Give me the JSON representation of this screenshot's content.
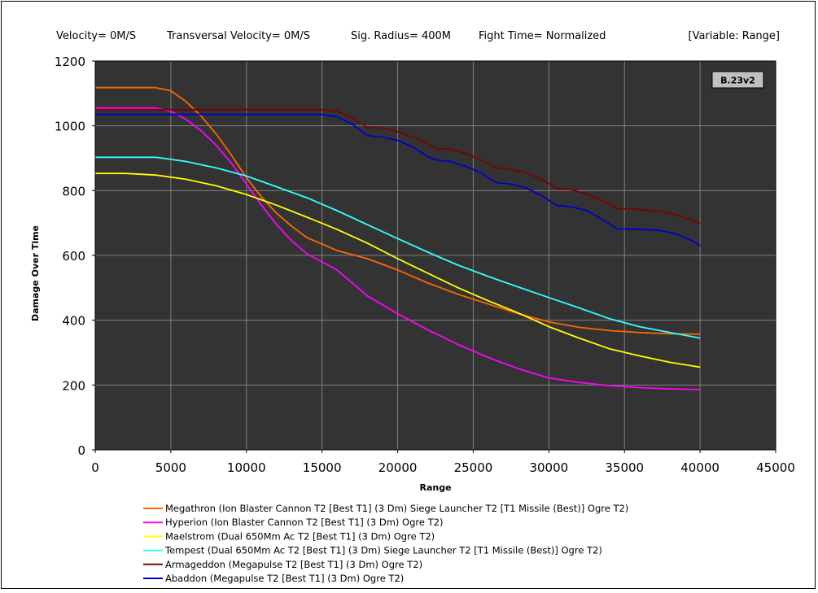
{
  "header": {
    "velocity": "Velocity= 0M/S",
    "transversal": "Transversal Velocity= 0M/S",
    "sig_radius": "Sig. Radius= 400M",
    "fight_time": "Fight Time= Normalized",
    "variable": "[Variable: Range]"
  },
  "badge": "B.23v2",
  "colors": {
    "plot_bg": "#333333",
    "grid": "#808080"
  },
  "chart_data": {
    "type": "line",
    "title": "",
    "xlabel": "Range",
    "ylabel": "Damage Over Time",
    "xlim": [
      0,
      45000
    ],
    "ylim": [
      0,
      1200
    ],
    "x_ticks": [
      0,
      5000,
      10000,
      15000,
      20000,
      25000,
      30000,
      35000,
      40000,
      45000
    ],
    "y_ticks": [
      0,
      200,
      400,
      600,
      800,
      1000,
      1200
    ],
    "grid": true,
    "legend_position": "bottom",
    "series": [
      {
        "name": "Megathron (Ion Blaster Cannon T2 [Best T1] (3 Dm) Siege Launcher T2 [T1 Missile (Best)] Ogre T2)",
        "color": "#ff6600",
        "points": [
          [
            0,
            1118
          ],
          [
            2000,
            1118
          ],
          [
            4000,
            1118
          ],
          [
            5000,
            1108
          ],
          [
            6000,
            1075
          ],
          [
            7000,
            1030
          ],
          [
            8000,
            975
          ],
          [
            9000,
            910
          ],
          [
            10000,
            840
          ],
          [
            11000,
            780
          ],
          [
            12000,
            730
          ],
          [
            13000,
            690
          ],
          [
            14000,
            655
          ],
          [
            15000,
            635
          ],
          [
            16000,
            615
          ],
          [
            18000,
            590
          ],
          [
            20000,
            555
          ],
          [
            22000,
            515
          ],
          [
            24000,
            480
          ],
          [
            26000,
            450
          ],
          [
            28000,
            420
          ],
          [
            30000,
            395
          ],
          [
            32000,
            378
          ],
          [
            34000,
            368
          ],
          [
            36000,
            362
          ],
          [
            38000,
            358
          ],
          [
            40000,
            357
          ]
        ]
      },
      {
        "name": "Hyperion (Ion Blaster Cannon T2 [Best T1] (3 Dm) Ogre T2)",
        "color": "#ff00ff",
        "points": [
          [
            0,
            1055
          ],
          [
            2000,
            1055
          ],
          [
            4000,
            1055
          ],
          [
            5000,
            1045
          ],
          [
            6000,
            1020
          ],
          [
            7000,
            985
          ],
          [
            8000,
            940
          ],
          [
            9000,
            885
          ],
          [
            10000,
            820
          ],
          [
            11000,
            755
          ],
          [
            12000,
            695
          ],
          [
            13000,
            645
          ],
          [
            14000,
            605
          ],
          [
            15000,
            580
          ],
          [
            16000,
            555
          ],
          [
            18000,
            475
          ],
          [
            20000,
            420
          ],
          [
            22000,
            370
          ],
          [
            24000,
            325
          ],
          [
            26000,
            285
          ],
          [
            28000,
            250
          ],
          [
            30000,
            222
          ],
          [
            32000,
            208
          ],
          [
            34000,
            198
          ],
          [
            36000,
            192
          ],
          [
            38000,
            188
          ],
          [
            40000,
            186
          ]
        ]
      },
      {
        "name": "Maelstrom (Dual 650Mm Ac T2 [Best T1] (3 Dm) Ogre T2)",
        "color": "#ffff00",
        "points": [
          [
            0,
            853
          ],
          [
            2000,
            853
          ],
          [
            4000,
            848
          ],
          [
            6000,
            835
          ],
          [
            8000,
            815
          ],
          [
            10000,
            788
          ],
          [
            12000,
            755
          ],
          [
            14000,
            718
          ],
          [
            16000,
            680
          ],
          [
            18000,
            638
          ],
          [
            20000,
            590
          ],
          [
            22000,
            545
          ],
          [
            24000,
            500
          ],
          [
            26000,
            460
          ],
          [
            28000,
            422
          ],
          [
            30000,
            380
          ],
          [
            32000,
            345
          ],
          [
            34000,
            312
          ],
          [
            36000,
            290
          ],
          [
            38000,
            270
          ],
          [
            40000,
            255
          ]
        ]
      },
      {
        "name": "Tempest (Dual 650Mm Ac T2 [Best T1] (3 Dm) Siege Launcher T2 [T1 Missile (Best)] Ogre T2)",
        "color": "#33ffff",
        "points": [
          [
            0,
            903
          ],
          [
            2000,
            903
          ],
          [
            4000,
            903
          ],
          [
            6000,
            890
          ],
          [
            8000,
            870
          ],
          [
            10000,
            845
          ],
          [
            12000,
            812
          ],
          [
            14000,
            778
          ],
          [
            16000,
            738
          ],
          [
            18000,
            695
          ],
          [
            20000,
            652
          ],
          [
            22000,
            610
          ],
          [
            24000,
            570
          ],
          [
            26000,
            535
          ],
          [
            28000,
            502
          ],
          [
            30000,
            470
          ],
          [
            32000,
            438
          ],
          [
            34000,
            405
          ],
          [
            36000,
            380
          ],
          [
            38000,
            362
          ],
          [
            40000,
            345
          ]
        ]
      },
      {
        "name": "Armageddon (Megapulse T2 [Best T1] (3 Dm) Ogre T2)",
        "color": "#800000",
        "points": [
          [
            0,
            1050
          ],
          [
            4000,
            1050
          ],
          [
            8000,
            1050
          ],
          [
            12000,
            1050
          ],
          [
            15000,
            1050
          ],
          [
            16000,
            1045
          ],
          [
            17000,
            1025
          ],
          [
            18000,
            995
          ],
          [
            19000,
            993
          ],
          [
            20000,
            982
          ],
          [
            21000,
            965
          ],
          [
            22000,
            945
          ],
          [
            22500,
            930
          ],
          [
            23500,
            928
          ],
          [
            24500,
            915
          ],
          [
            25500,
            895
          ],
          [
            26500,
            870
          ],
          [
            27500,
            865
          ],
          [
            28500,
            855
          ],
          [
            29500,
            835
          ],
          [
            30500,
            808
          ],
          [
            31500,
            802
          ],
          [
            32500,
            790
          ],
          [
            33500,
            770
          ],
          [
            34500,
            745
          ],
          [
            35500,
            743
          ],
          [
            36500,
            740
          ],
          [
            37500,
            735
          ],
          [
            38500,
            725
          ],
          [
            39500,
            708
          ],
          [
            40000,
            698
          ]
        ]
      },
      {
        "name": "Abaddon (Megapulse T2 [Best T1] (3 Dm) Ogre T2)",
        "color": "#0000cc",
        "points": [
          [
            0,
            1035
          ],
          [
            4000,
            1035
          ],
          [
            8000,
            1035
          ],
          [
            12000,
            1035
          ],
          [
            15000,
            1035
          ],
          [
            16000,
            1028
          ],
          [
            17000,
            1005
          ],
          [
            18000,
            970
          ],
          [
            19000,
            965
          ],
          [
            20000,
            955
          ],
          [
            21000,
            935
          ],
          [
            22000,
            905
          ],
          [
            22500,
            895
          ],
          [
            23500,
            890
          ],
          [
            24500,
            875
          ],
          [
            25500,
            855
          ],
          [
            26500,
            825
          ],
          [
            27500,
            820
          ],
          [
            28500,
            808
          ],
          [
            29500,
            785
          ],
          [
            30500,
            755
          ],
          [
            31500,
            750
          ],
          [
            32500,
            738
          ],
          [
            33500,
            712
          ],
          [
            34500,
            682
          ],
          [
            35500,
            681
          ],
          [
            36500,
            680
          ],
          [
            37500,
            676
          ],
          [
            38500,
            665
          ],
          [
            39500,
            645
          ],
          [
            40000,
            630
          ]
        ]
      }
    ]
  }
}
